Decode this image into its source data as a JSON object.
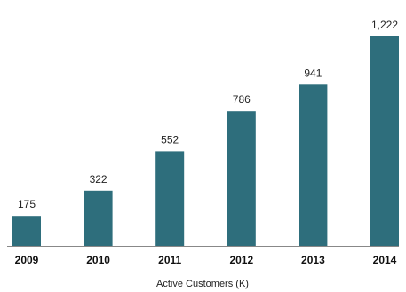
{
  "chart_data": {
    "type": "bar",
    "categories": [
      "2009",
      "2010",
      "2011",
      "2012",
      "2013",
      "2014"
    ],
    "values": [
      175,
      322,
      552,
      786,
      941,
      1222
    ],
    "data_labels": [
      "175",
      "322",
      "552",
      "786",
      "941",
      "1,222"
    ],
    "title": "",
    "xlabel": "Active Customers (K)",
    "ylabel": "",
    "ylim": [
      0,
      1222
    ],
    "grid": false,
    "legend": "none",
    "bar_color": "#2e6e7c",
    "baseline_color": "#888888"
  }
}
